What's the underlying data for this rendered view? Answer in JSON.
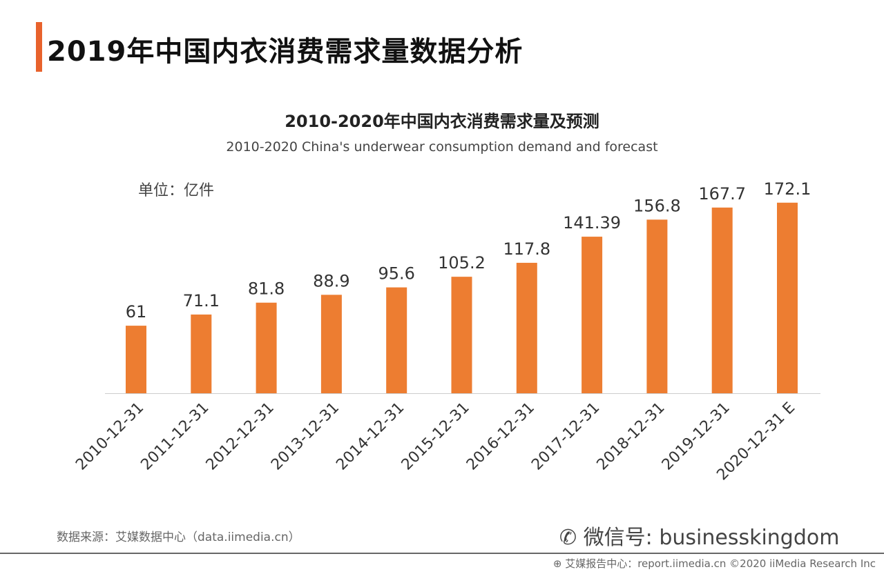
{
  "page_title": "2019年中国内衣消费需求量数据分析",
  "footer": {
    "source": "数据来源：艾媒数据中心（data.iimedia.cn）",
    "wechat": "微信号: businesskingdom",
    "copyright": "艾媒报告中心：report.iimedia.cn   ©2020  iiMedia Research Inc"
  },
  "colors": {
    "accent": "#e8622c",
    "bar": "#ed7d31"
  },
  "chart_data": {
    "type": "bar",
    "title": "2010-2020年中国内衣消费需求量及预测",
    "subtitle": "2010-2020 China's underwear consumption demand and forecast",
    "unit": "单位：亿件",
    "categories": [
      "2010-12-31",
      "2011-12-31",
      "2012-12-31",
      "2013-12-31",
      "2014-12-31",
      "2015-12-31",
      "2016-12-31",
      "2017-12-31",
      "2018-12-31",
      "2019-12-31",
      "2020-12-31 E"
    ],
    "values": [
      61,
      71.1,
      81.8,
      88.9,
      95.6,
      105.2,
      117.8,
      141.39,
      156.8,
      167.7,
      172.1
    ],
    "data_labels": [
      "61",
      "71.1",
      "81.8",
      "88.9",
      "95.6",
      "105.2",
      "117.8",
      "141.39",
      "156.8",
      "167.7",
      "172.1"
    ],
    "ylim": [
      0,
      200
    ],
    "grid": false,
    "legend": "none"
  }
}
